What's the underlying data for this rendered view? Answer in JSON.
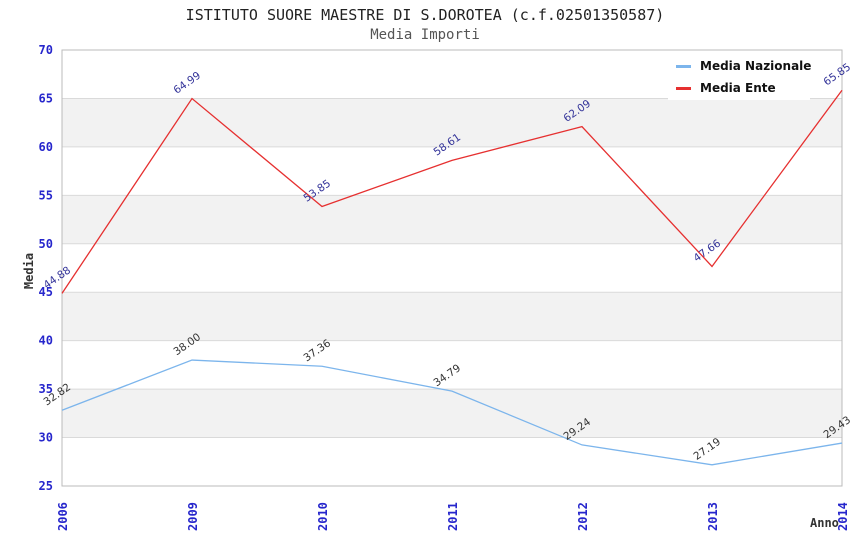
{
  "chart_data": {
    "type": "line",
    "title": "ISTITUTO SUORE MAESTRE DI S.DOROTEA (c.f.02501350587)",
    "subtitle": "Media Importi",
    "categories": [
      "2006",
      "2009",
      "2010",
      "2011",
      "2012",
      "2013",
      "2014"
    ],
    "series": [
      {
        "name": "Media Nazionale",
        "values": [
          32.82,
          38.0,
          37.36,
          34.79,
          29.24,
          27.19,
          29.43
        ],
        "color": "#7CB5EC",
        "label_color": "#333333"
      },
      {
        "name": "Media Ente",
        "values": [
          44.88,
          64.99,
          53.85,
          58.61,
          62.09,
          47.66,
          65.85
        ],
        "color": "#E63030",
        "label_color": "#333399"
      }
    ],
    "xlabel": "Anno",
    "ylabel": "Media",
    "ylim": [
      25,
      70
    ],
    "ytick_step": 5,
    "grid": true,
    "legend_position": "top-right",
    "styles": {
      "tick_label_color": "#2626CC",
      "band_color": "#F2F2F2",
      "gridline_color": "#DADADA",
      "plot_border_color": "#BBBBBB"
    }
  }
}
